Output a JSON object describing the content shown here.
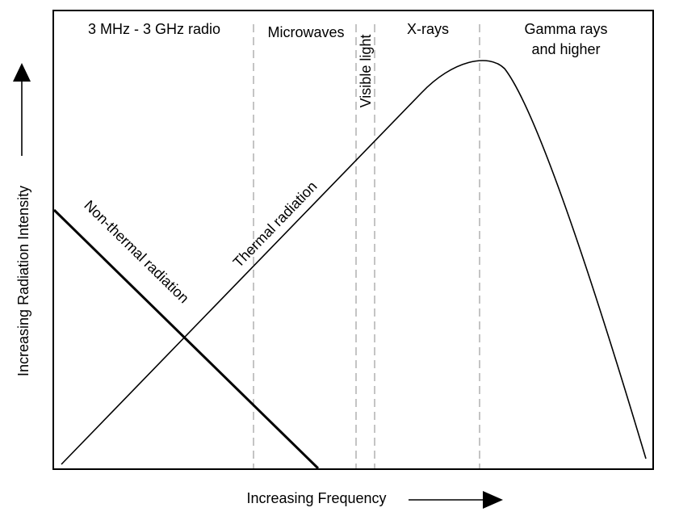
{
  "axes": {
    "x_label": "Increasing Frequency",
    "y_label": "Increasing Radiation Intensity"
  },
  "regions": [
    {
      "label": "3 MHz - 3 GHz radio"
    },
    {
      "label": "Microwaves"
    },
    {
      "label": "Visible light"
    },
    {
      "label": "X-rays"
    },
    {
      "label_line1": "Gamma rays",
      "label_line2": "and higher"
    }
  ],
  "curves": {
    "non_thermal": {
      "label": "Non-thermal radiation"
    },
    "thermal": {
      "label": "Thermal radiation"
    }
  },
  "colors": {
    "line": "#000000",
    "divider": "#888888",
    "background": "#ffffff"
  }
}
